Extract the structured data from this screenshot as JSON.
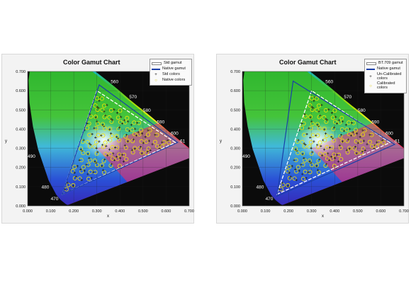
{
  "chart_data": [
    {
      "type": "scatter",
      "title": "Color Gamut Chart",
      "xlabel": "x",
      "ylabel": "y",
      "xlim": [
        0.0,
        0.7
      ],
      "ylim": [
        0.0,
        0.7
      ],
      "xticks": [
        "0.000",
        "0.100",
        "0.200",
        "0.300",
        "0.400",
        "0.500",
        "0.600",
        "0.700"
      ],
      "yticks": [
        "0.000",
        "0.100",
        "0.200",
        "0.300",
        "0.400",
        "0.500",
        "0.600",
        "0.700"
      ],
      "wavelength_labels": [
        {
          "text": "560",
          "x": 0.36,
          "y": 0.64
        },
        {
          "text": "570",
          "x": 0.44,
          "y": 0.56
        },
        {
          "text": "580",
          "x": 0.5,
          "y": 0.49
        },
        {
          "text": "590",
          "x": 0.56,
          "y": 0.43
        },
        {
          "text": "600",
          "x": 0.62,
          "y": 0.37
        },
        {
          "text": "61",
          "x": 0.66,
          "y": 0.33
        },
        {
          "text": "490",
          "x": 0.0,
          "y": 0.25
        },
        {
          "text": "480",
          "x": 0.06,
          "y": 0.09
        },
        {
          "text": "470",
          "x": 0.1,
          "y": 0.03
        }
      ],
      "legend": [
        {
          "label": "Std gamut",
          "kind": "line",
          "color": "#ffffff"
        },
        {
          "label": "Native gamut",
          "kind": "line",
          "color": "#1a3fa8"
        },
        {
          "label": "Std colors",
          "kind": "symbol",
          "symbol": "+",
          "color": "#1a1a1a"
        },
        {
          "label": "Native colors",
          "kind": "symbol",
          "symbol": "o",
          "color": "#f2e600"
        }
      ],
      "std_gamut": [
        [
          0.64,
          0.33
        ],
        [
          0.3,
          0.6
        ],
        [
          0.15,
          0.06
        ]
      ],
      "native_gamut": [
        [
          0.65,
          0.33
        ],
        [
          0.31,
          0.63
        ],
        [
          0.15,
          0.06
        ]
      ],
      "colors": {
        "std": "#ffffff",
        "native": "#1a3fa8",
        "std_points": "#1a1a1a",
        "native_points": "#f2e600"
      }
    },
    {
      "type": "scatter",
      "title": "Color Gamut Chart",
      "xlabel": "x",
      "ylabel": "y",
      "xlim": [
        0.0,
        0.7
      ],
      "ylim": [
        0.0,
        0.7
      ],
      "xticks": [
        "0.000",
        "0.100",
        "0.200",
        "0.300",
        "0.400",
        "0.500",
        "0.600",
        "0.700"
      ],
      "yticks": [
        "0.000",
        "0.100",
        "0.200",
        "0.300",
        "0.400",
        "0.500",
        "0.600",
        "0.700"
      ],
      "wavelength_labels": [
        {
          "text": "560",
          "x": 0.36,
          "y": 0.64
        },
        {
          "text": "570",
          "x": 0.44,
          "y": 0.56
        },
        {
          "text": "580",
          "x": 0.5,
          "y": 0.49
        },
        {
          "text": "590",
          "x": 0.56,
          "y": 0.43
        },
        {
          "text": "600",
          "x": 0.62,
          "y": 0.37
        },
        {
          "text": "61",
          "x": 0.66,
          "y": 0.33
        },
        {
          "text": "490",
          "x": 0.0,
          "y": 0.25
        },
        {
          "text": "480",
          "x": 0.06,
          "y": 0.09
        },
        {
          "text": "470",
          "x": 0.1,
          "y": 0.03
        }
      ],
      "legend": [
        {
          "label": "BT.709 gamut",
          "kind": "line",
          "color": "#ffffff"
        },
        {
          "label": "Native gamut",
          "kind": "line",
          "color": "#1a3fa8"
        },
        {
          "label": "Un-Calibrated colors",
          "kind": "symbol",
          "symbol": "+",
          "color": "#1a1a1a"
        },
        {
          "label": "Calibrated colors",
          "kind": "symbol",
          "symbol": "o",
          "color": "#f2e600"
        }
      ],
      "std_gamut": [
        [
          0.64,
          0.33
        ],
        [
          0.3,
          0.6
        ],
        [
          0.15,
          0.06
        ]
      ],
      "native_gamut": [
        [
          0.66,
          0.32
        ],
        [
          0.22,
          0.65
        ],
        [
          0.15,
          0.05
        ]
      ],
      "colors": {
        "std": "#ffffff",
        "native": "#1a3fa8",
        "std_points": "#1a1a1a",
        "native_points": "#f2e600"
      }
    }
  ]
}
